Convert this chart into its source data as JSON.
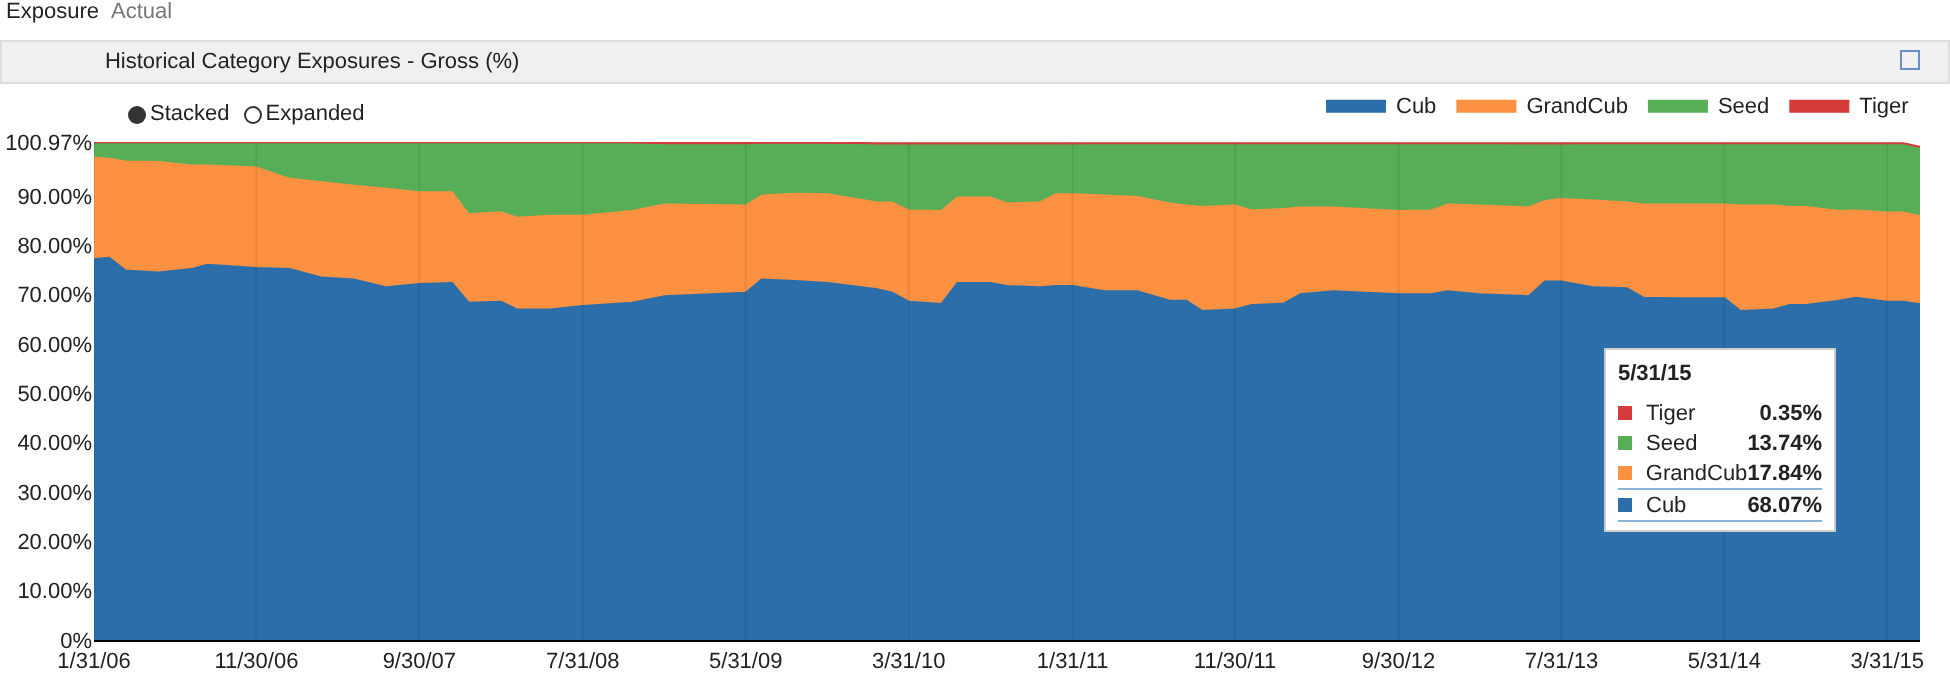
{
  "chart_data": {
    "type": "area",
    "title": "Historical Category Exposures - Gross (%)",
    "stacked": true,
    "grid": "x",
    "legend": "top right",
    "annotations": [
      "Exposure",
      "Actual",
      "Stacked",
      "Expanded",
      "5/31/15",
      "Tiger",
      "0.35%",
      "Seed",
      "13.74%",
      "GrandCub",
      "17.84%",
      "Cub",
      "68.07%"
    ],
    "x": [
      "2006-01-31",
      "2006-02-28",
      "2006-03-31",
      "2006-05-31",
      "2006-07-31",
      "2006-08-31",
      "2006-11-30",
      "2007-01-31",
      "2007-03-31",
      "2007-05-31",
      "2007-07-31",
      "2007-09-30",
      "2007-11-30",
      "2007-12-31",
      "2008-02-29",
      "2008-03-31",
      "2008-05-31",
      "2008-07-31",
      "2008-10-31",
      "2008-12-31",
      "2009-05-31",
      "2009-06-30",
      "2009-08-31",
      "2009-10-31",
      "2010-01-31",
      "2010-02-28",
      "2010-03-31",
      "2010-05-31",
      "2010-06-30",
      "2010-08-31",
      "2010-09-30",
      "2010-11-30",
      "2010-12-31",
      "2011-01-31",
      "2011-03-31",
      "2011-05-31",
      "2011-07-31",
      "2011-08-31",
      "2011-09-30",
      "2011-11-30",
      "2011-12-31",
      "2012-02-29",
      "2012-03-31",
      "2012-05-31",
      "2012-09-30",
      "2012-11-30",
      "2012-12-31",
      "2013-02-28",
      "2013-05-31",
      "2013-06-30",
      "2013-07-31",
      "2013-09-30",
      "2013-11-30",
      "2013-12-31",
      "2014-02-28",
      "2014-05-31",
      "2014-06-30",
      "2014-08-31",
      "2014-09-30",
      "2014-10-31",
      "2014-12-31",
      "2015-01-31",
      "2015-03-31",
      "2015-04-30",
      "2015-05-31"
    ],
    "series": [
      {
        "name": "Cub",
        "color": "#2b6ea9",
        "values": [
          77.2,
          77.5,
          74.9,
          74.5,
          75.2,
          76.1,
          75.4,
          75.2,
          73.5,
          73.1,
          71.5,
          72.2,
          72.4,
          68.4,
          68.6,
          67.0,
          67.0,
          67.7,
          68.4,
          69.7,
          70.4,
          73.1,
          72.8,
          72.4,
          71.1,
          70.4,
          68.6,
          68.1,
          72.4,
          72.4,
          71.8,
          71.5,
          71.8,
          71.8,
          70.7,
          70.7,
          68.8,
          68.8,
          66.7,
          67.0,
          67.9,
          68.2,
          70.1,
          70.7,
          70.1,
          70.1,
          70.7,
          70.1,
          69.7,
          72.7,
          72.7,
          71.5,
          71.3,
          69.4,
          69.3,
          69.3,
          66.7,
          67.0,
          67.9,
          67.9,
          68.8,
          69.4,
          68.6,
          68.6,
          68.07
        ]
      },
      {
        "name": "GrandCub",
        "color": "#fb9141",
        "values": [
          20.6,
          20.1,
          22.1,
          22.4,
          21.0,
          20.1,
          20.4,
          18.3,
          19.3,
          19.0,
          20.0,
          18.6,
          18.4,
          17.9,
          18.1,
          18.6,
          19.0,
          18.3,
          18.6,
          18.6,
          17.7,
          17.0,
          17.7,
          18.0,
          17.6,
          18.3,
          18.5,
          18.9,
          17.3,
          17.3,
          16.7,
          17.2,
          18.6,
          18.6,
          19.4,
          19.1,
          19.7,
          19.3,
          21.1,
          21.1,
          19.2,
          19.2,
          17.6,
          17.0,
          16.9,
          17.0,
          17.6,
          18.0,
          18.0,
          16.3,
          16.7,
          17.6,
          17.4,
          18.9,
          19.0,
          19.0,
          21.4,
          21.1,
          19.9,
          19.9,
          18.2,
          17.7,
          18.1,
          18.1,
          17.84
        ]
      },
      {
        "name": "Seed",
        "color": "#58ae57",
        "values": [
          3.1,
          3.3,
          3.9,
          4.0,
          4.7,
          4.7,
          5.1,
          7.4,
          8.1,
          8.8,
          9.4,
          10.1,
          10.1,
          14.6,
          14.2,
          15.3,
          14.9,
          14.9,
          13.5,
          12.0,
          12.2,
          10.3,
          9.9,
          10.0,
          11.6,
          11.6,
          13.2,
          13.3,
          10.6,
          10.6,
          11.8,
          11.6,
          9.9,
          9.9,
          10.3,
          10.6,
          11.9,
          12.3,
          12.6,
          12.3,
          13.3,
          13.0,
          12.7,
          12.7,
          13.4,
          13.3,
          12.1,
          12.3,
          12.6,
          11.3,
          10.9,
          11.3,
          11.7,
          12.1,
          12.1,
          12.1,
          12.3,
          12.3,
          12.6,
          12.6,
          13.4,
          13.3,
          13.7,
          13.7,
          13.74
        ]
      },
      {
        "name": "Tiger",
        "color": "#d43b3b",
        "values": [
          0,
          0,
          0,
          0,
          0,
          0,
          0,
          0,
          0,
          0,
          0,
          0,
          0,
          0,
          0,
          0,
          0,
          0,
          0.4,
          0.6,
          0.6,
          0.5,
          0.5,
          0.5,
          0.4,
          0.4,
          0.4,
          0.4,
          0.4,
          0.4,
          0.4,
          0.4,
          0.4,
          0.4,
          0.3,
          0.3,
          0.3,
          0.3,
          0.3,
          0.3,
          0.3,
          0.3,
          0.3,
          0.3,
          0.3,
          0.3,
          0.3,
          0.3,
          0.4,
          0.4,
          0.4,
          0.3,
          0.3,
          0.3,
          0.3,
          0.3,
          0.3,
          0.3,
          0.3,
          0.3,
          0.3,
          0.3,
          0.3,
          0.3,
          0.35
        ]
      }
    ],
    "xlim": [
      "2006-01-31",
      "2015-05-31"
    ],
    "xticks": [
      {
        "value": "2006-01-31",
        "label": "1/31/06"
      },
      {
        "value": "2006-11-30",
        "label": "11/30/06"
      },
      {
        "value": "2007-09-30",
        "label": "9/30/07"
      },
      {
        "value": "2008-07-31",
        "label": "7/31/08"
      },
      {
        "value": "2009-05-31",
        "label": "5/31/09"
      },
      {
        "value": "2010-03-31",
        "label": "3/31/10"
      },
      {
        "value": "2011-01-31",
        "label": "1/31/11"
      },
      {
        "value": "2011-11-30",
        "label": "11/30/11"
      },
      {
        "value": "2012-09-30",
        "label": "9/30/12"
      },
      {
        "value": "2013-07-31",
        "label": "7/31/13"
      },
      {
        "value": "2014-05-31",
        "label": "5/31/14"
      },
      {
        "value": "2015-03-31",
        "label": "3/31/15"
      }
    ],
    "ylim": [
      0,
      100.97
    ],
    "yticks": [
      {
        "value": 0,
        "label": "0%"
      },
      {
        "value": 10,
        "label": "10.00%"
      },
      {
        "value": 20,
        "label": "20.00%"
      },
      {
        "value": 30,
        "label": "30.00%"
      },
      {
        "value": 40,
        "label": "40.00%"
      },
      {
        "value": 50,
        "label": "50.00%"
      },
      {
        "value": 60,
        "label": "60.00%"
      },
      {
        "value": 70,
        "label": "70.00%"
      },
      {
        "value": 80,
        "label": "80.00%"
      },
      {
        "value": 90,
        "label": "90.00%"
      },
      {
        "value": 100.97,
        "label": "100.97%"
      }
    ]
  }
}
